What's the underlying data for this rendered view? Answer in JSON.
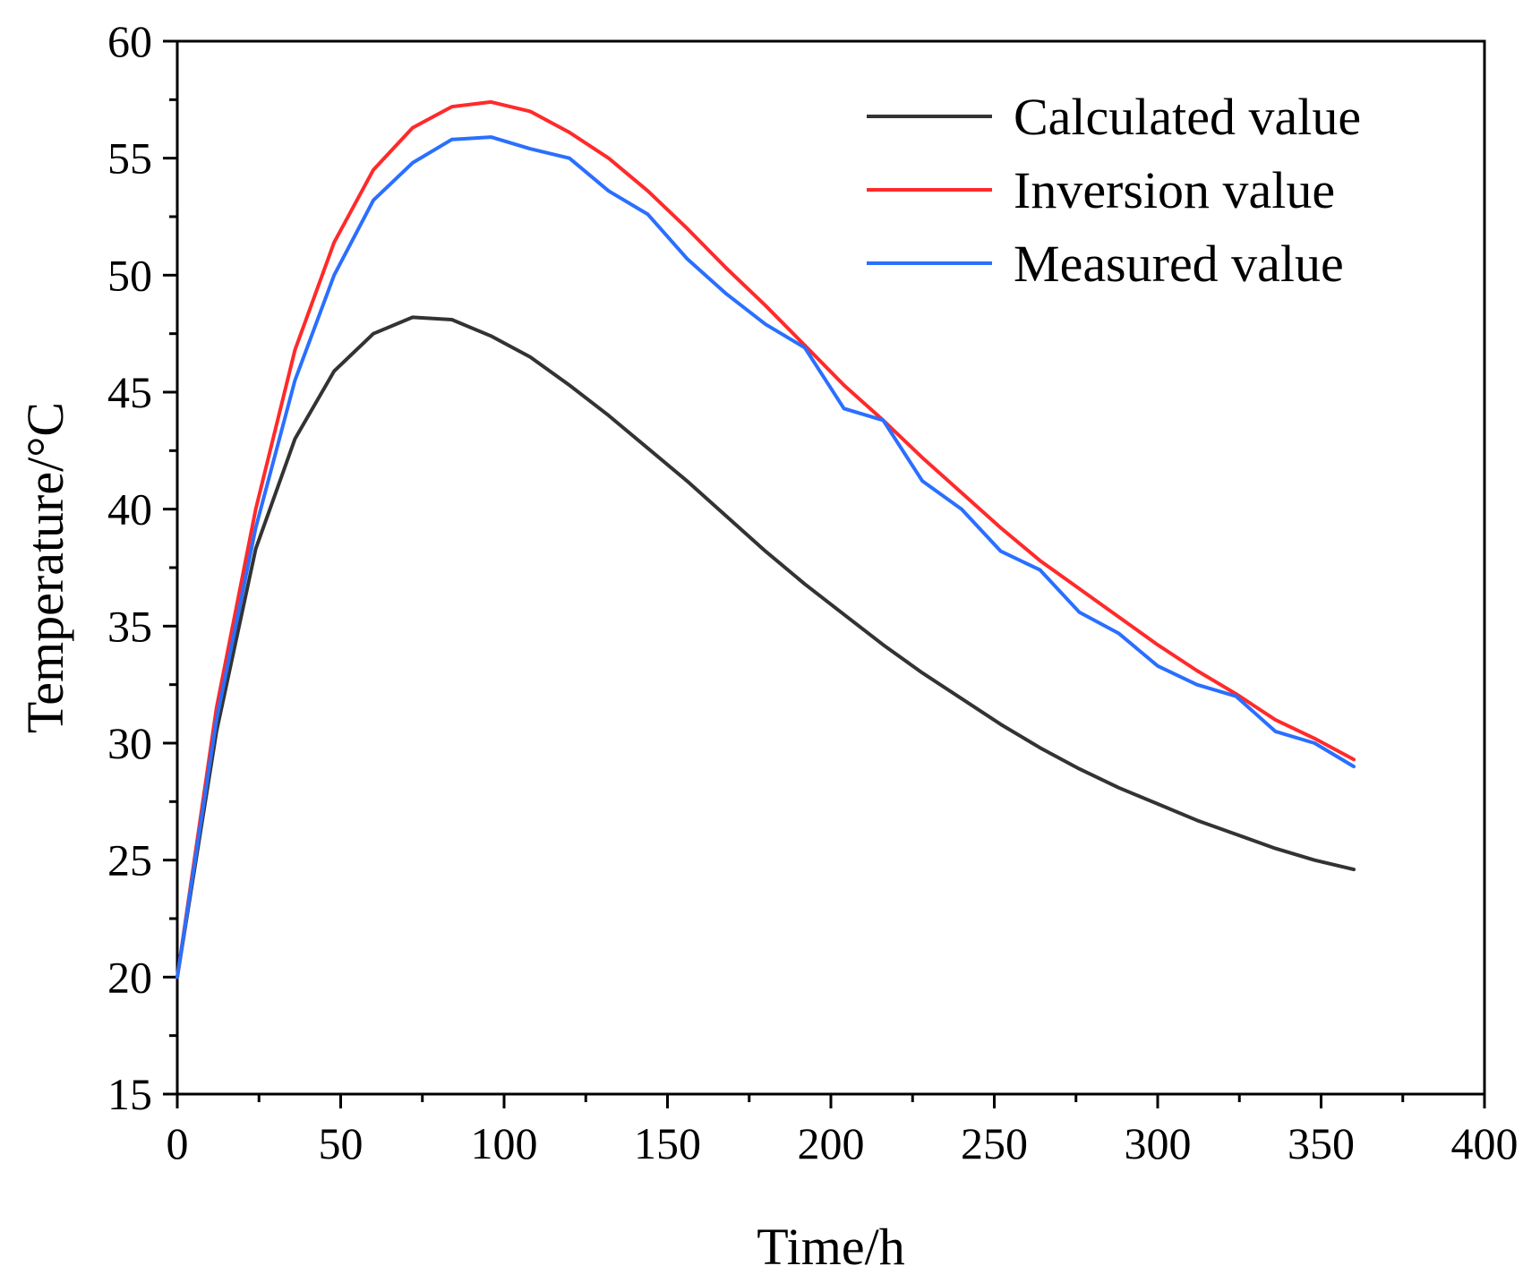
{
  "chart_data": {
    "type": "line",
    "xlabel": "Time/h",
    "ylabel": "Temperature/°C",
    "xlim": [
      0,
      400
    ],
    "ylim": [
      15,
      60
    ],
    "xticks": [
      0,
      50,
      100,
      150,
      200,
      250,
      300,
      350,
      400
    ],
    "yticks": [
      15,
      20,
      25,
      30,
      35,
      40,
      45,
      50,
      55,
      60
    ],
    "grid": false,
    "legend_position": "top-right",
    "series": [
      {
        "name": "Calculated value",
        "color": "#333333",
        "x": [
          0,
          12,
          24,
          36,
          48,
          60,
          72,
          84,
          96,
          108,
          120,
          132,
          144,
          156,
          168,
          180,
          192,
          204,
          216,
          228,
          240,
          252,
          264,
          276,
          288,
          300,
          312,
          324,
          336,
          348,
          360
        ],
        "y": [
          20,
          30.5,
          38.3,
          43,
          45.9,
          47.5,
          48.2,
          48.1,
          47.4,
          46.5,
          45.3,
          44,
          42.6,
          41.2,
          39.7,
          38.2,
          36.8,
          35.5,
          34.2,
          33,
          31.9,
          30.8,
          29.8,
          28.9,
          28.1,
          27.4,
          26.7,
          26.1,
          25.5,
          25,
          24.6
        ]
      },
      {
        "name": "Inversion value",
        "color": "#ff2a2a",
        "x": [
          0,
          12,
          24,
          36,
          48,
          60,
          72,
          84,
          96,
          108,
          120,
          132,
          144,
          156,
          168,
          180,
          192,
          204,
          216,
          228,
          240,
          252,
          264,
          276,
          288,
          300,
          312,
          324,
          336,
          348,
          360
        ],
        "y": [
          20,
          31.5,
          40,
          46.8,
          51.4,
          54.5,
          56.3,
          57.2,
          57.4,
          57,
          56.1,
          55,
          53.6,
          52,
          50.3,
          48.7,
          47,
          45.3,
          43.8,
          42.2,
          40.7,
          39.2,
          37.8,
          36.6,
          35.4,
          34.2,
          33.1,
          32.1,
          31,
          30.2,
          29.3
        ]
      },
      {
        "name": "Measured value",
        "color": "#2a6fff",
        "x": [
          0,
          12,
          24,
          36,
          48,
          60,
          72,
          84,
          96,
          108,
          120,
          132,
          144,
          156,
          168,
          180,
          192,
          204,
          216,
          228,
          240,
          252,
          264,
          276,
          288,
          300,
          312,
          324,
          336,
          348,
          360
        ],
        "y": [
          20,
          31,
          39.2,
          45.5,
          50,
          53.2,
          54.8,
          55.8,
          55.9,
          55.4,
          55,
          53.6,
          52.6,
          50.7,
          49.2,
          47.9,
          46.9,
          44.3,
          43.8,
          41.2,
          40,
          38.2,
          37.4,
          35.6,
          34.7,
          33.3,
          32.5,
          32,
          30.5,
          30,
          29
        ]
      }
    ]
  }
}
